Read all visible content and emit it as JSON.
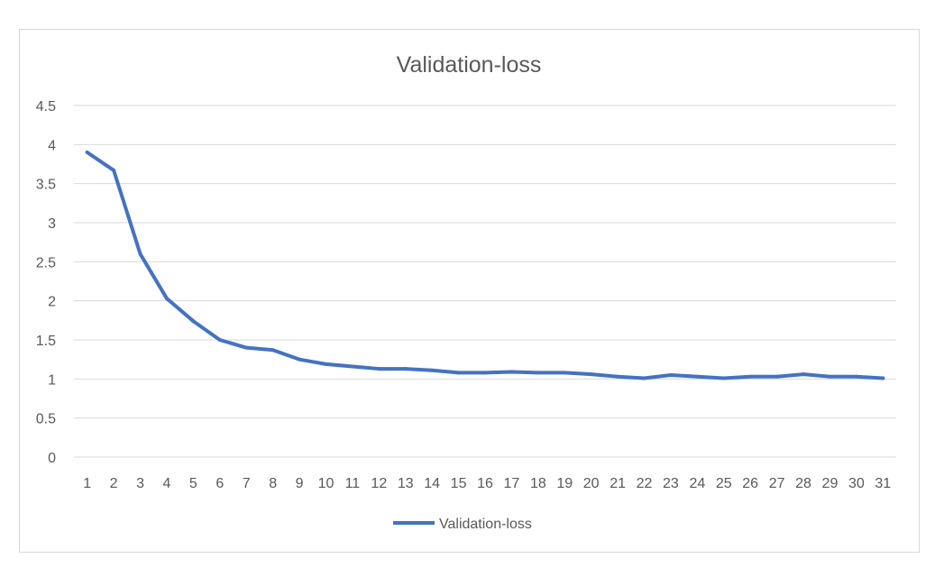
{
  "chart_data": {
    "type": "line",
    "title": "Validation-loss",
    "xlabel": "",
    "ylabel": "",
    "categories": [
      "1",
      "2",
      "3",
      "4",
      "5",
      "6",
      "7",
      "8",
      "9",
      "10",
      "11",
      "12",
      "13",
      "14",
      "15",
      "16",
      "17",
      "18",
      "19",
      "20",
      "21",
      "22",
      "23",
      "24",
      "25",
      "26",
      "27",
      "28",
      "29",
      "30",
      "31"
    ],
    "series": [
      {
        "name": "Validation-loss",
        "color": "#4472c4",
        "values": [
          3.9,
          3.67,
          2.6,
          2.03,
          1.74,
          1.5,
          1.4,
          1.37,
          1.25,
          1.19,
          1.16,
          1.13,
          1.13,
          1.11,
          1.08,
          1.08,
          1.09,
          1.08,
          1.08,
          1.06,
          1.03,
          1.01,
          1.05,
          1.03,
          1.01,
          1.03,
          1.03,
          1.06,
          1.03,
          1.03,
          1.01
        ]
      }
    ],
    "ylim": [
      0,
      4.5
    ],
    "yticks": [
      "0",
      "0.5",
      "1",
      "1.5",
      "2",
      "2.5",
      "3",
      "3.5",
      "4",
      "4.5"
    ],
    "grid": true,
    "legend_position": "bottom",
    "colors": {
      "gridline": "#d9d9d9",
      "text": "#595959",
      "frame": "#d9d9d9"
    }
  }
}
